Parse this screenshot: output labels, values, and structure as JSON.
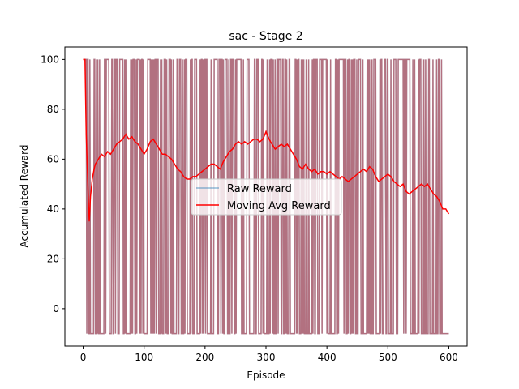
{
  "chart_data": {
    "type": "line",
    "title": "sac - Stage 2",
    "xlabel": "Episode",
    "ylabel": "Accumulated Reward",
    "xlim": [
      -30,
      630
    ],
    "ylim": [
      -15,
      105
    ],
    "xticks": [
      0,
      100,
      200,
      300,
      400,
      500,
      600
    ],
    "yticks": [
      0,
      20,
      40,
      60,
      80,
      100
    ],
    "grid": false,
    "legend_position": "center",
    "series": [
      {
        "name": "Raw Reward",
        "color": "#1f77b4",
        "alpha": 0.5,
        "description_values": "oscillates between -10 and 100 each episode",
        "range": [
          -10,
          100
        ],
        "episodes": [
          0,
          600
        ]
      },
      {
        "name": "Moving Avg Reward",
        "color": "#ff0000",
        "x": [
          0,
          3,
          5,
          7,
          9,
          10,
          12,
          15,
          18,
          20,
          25,
          30,
          35,
          40,
          45,
          50,
          55,
          60,
          65,
          70,
          75,
          80,
          85,
          90,
          95,
          100,
          105,
          110,
          115,
          120,
          125,
          130,
          135,
          140,
          145,
          150,
          155,
          160,
          165,
          170,
          175,
          180,
          185,
          190,
          195,
          200,
          205,
          210,
          215,
          220,
          225,
          230,
          235,
          240,
          245,
          250,
          255,
          260,
          265,
          270,
          275,
          280,
          285,
          290,
          295,
          300,
          305,
          310,
          315,
          320,
          325,
          330,
          335,
          340,
          345,
          350,
          355,
          360,
          365,
          370,
          375,
          380,
          385,
          390,
          395,
          400,
          405,
          410,
          415,
          420,
          425,
          430,
          435,
          440,
          445,
          450,
          455,
          460,
          465,
          470,
          475,
          480,
          485,
          490,
          495,
          500,
          505,
          510,
          515,
          520,
          525,
          530,
          535,
          540,
          545,
          550,
          555,
          560,
          565,
          570,
          575,
          580,
          585,
          590,
          595,
          600
        ],
        "values": [
          100,
          100,
          70,
          55,
          40,
          35,
          45,
          52,
          56,
          58,
          60,
          62,
          61,
          63,
          62,
          64,
          66,
          67,
          68,
          70,
          68,
          69,
          67,
          66,
          64,
          62,
          64,
          67,
          68,
          66,
          64,
          62,
          62,
          61,
          60,
          58,
          56,
          55,
          53,
          52,
          52,
          53,
          53,
          54,
          55,
          56,
          57,
          58,
          58,
          57,
          56,
          59,
          61,
          63,
          64,
          66,
          67,
          66,
          67,
          66,
          67,
          68,
          68,
          67,
          68,
          71,
          68,
          66,
          64,
          65,
          66,
          65,
          66,
          64,
          62,
          60,
          57,
          56,
          58,
          56,
          55,
          56,
          54,
          55,
          55,
          54,
          55,
          54,
          53,
          52,
          53,
          52,
          51,
          52,
          53,
          54,
          55,
          56,
          55,
          57,
          56,
          53,
          51,
          52,
          53,
          54,
          53,
          51,
          50,
          49,
          50,
          47,
          46,
          47,
          48,
          49,
          50,
          49,
          50,
          48,
          46,
          45,
          43,
          40,
          40,
          38
        ]
      }
    ]
  }
}
